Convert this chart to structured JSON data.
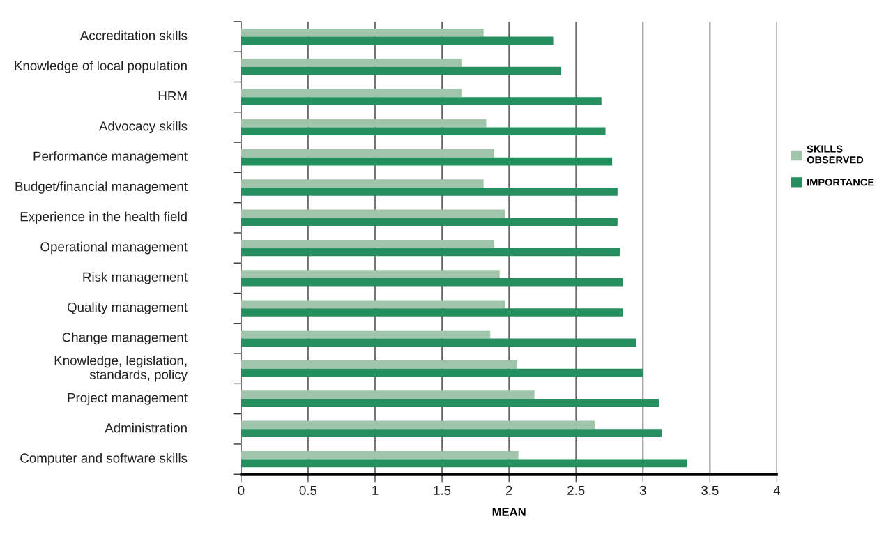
{
  "chart_data": {
    "type": "bar",
    "orientation": "horizontal",
    "xlabel": "MEAN",
    "categories": [
      "Accreditation skills",
      "Knowledge of local population",
      "HRM",
      "Advocacy skills",
      "Performance management",
      "Budget/financial management",
      "Experience in the health field",
      "Operational management",
      "Risk management",
      "Quality management",
      "Change management",
      "Knowledge, legislation,\nstandards, policy",
      "Project management",
      "Administration",
      "Computer and software skills"
    ],
    "series": [
      {
        "name": "SKILLS\nOBSERVED",
        "color": "#a0c5ab",
        "values": [
          1.81,
          1.65,
          1.65,
          1.83,
          1.89,
          1.81,
          1.97,
          1.89,
          1.93,
          1.97,
          1.86,
          2.06,
          2.19,
          2.64,
          2.07
        ]
      },
      {
        "name": "IMPORTANCE",
        "color": "#268f60",
        "values": [
          2.33,
          2.39,
          2.69,
          2.72,
          2.77,
          2.81,
          2.81,
          2.83,
          2.85,
          2.85,
          2.95,
          3.0,
          3.12,
          3.14,
          3.33
        ]
      }
    ],
    "xlim": [
      0,
      4
    ],
    "xticks": [
      0,
      0.5,
      1,
      1.5,
      2,
      2.5,
      3,
      3.5,
      4
    ],
    "grid": "x",
    "legend": "right"
  }
}
